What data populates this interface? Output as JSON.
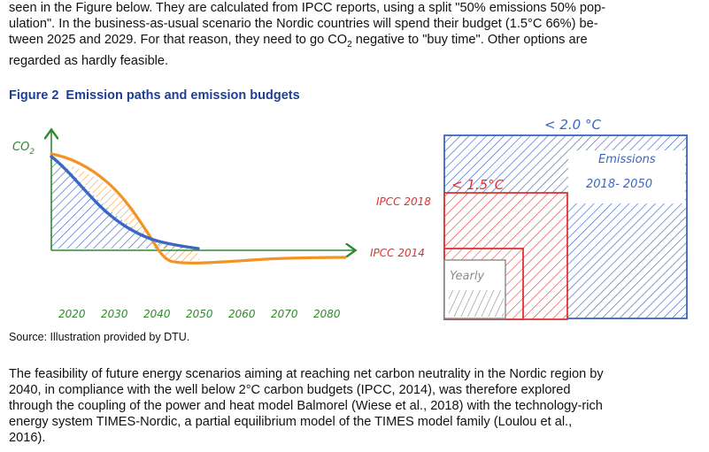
{
  "intro": {
    "line1": "seen in the Figure below. They are calculated from IPCC reports, using a split \"50% emissions 50% pop-",
    "line2": "ulation\". In the business-as-usual scenario the Nordic countries will spend their budget (1.5°C 66%) be-",
    "line3": "tween 2025 and 2029. For that reason, they need to go CO",
    "line3_sub": "2",
    "line3_end": " negative to \"buy time\". Other options are",
    "line4": "regarded as hardly feasible."
  },
  "figure": {
    "number": "Figure 2",
    "title": "Emission paths and emission budgets",
    "left_panel": {
      "y_label_main": "CO",
      "y_label_sub": "2",
      "x_ticks": [
        "2020",
        "2030",
        "2040",
        "2050",
        "2060",
        "2070",
        "2080"
      ]
    },
    "right_panel": {
      "budget_2c": "< 2.0 °C",
      "budget_15c": "< 1.5°C",
      "emissions_line1": "Emissions",
      "emissions_line2": "2018- 2050",
      "ipcc_2018": "IPCC 2018",
      "ipcc_2014": "IPCC 2014",
      "yearly": "Yearly"
    },
    "colors": {
      "blue": "#3a66c4",
      "orange": "#f39325",
      "red": "#e03232",
      "green": "#2f8a2f",
      "title": "#1f3f91"
    }
  },
  "source": "Source: Illustration provided by DTU.",
  "outro": {
    "line1": "The feasibility of future energy scenarios aiming at reaching net carbon neutrality in the Nordic region by",
    "line2": "2040, in compliance with the well below 2°C carbon budgets (IPCC, 2014), was therefore explored",
    "line3": "through the coupling of the power and heat model Balmorel (Wiese et al., 2018) with the technology-rich",
    "line4": "energy system TIMES-Nordic, a partial equilibrium model of the TIMES model family (Loulou et al.,",
    "line5": "2016)."
  }
}
